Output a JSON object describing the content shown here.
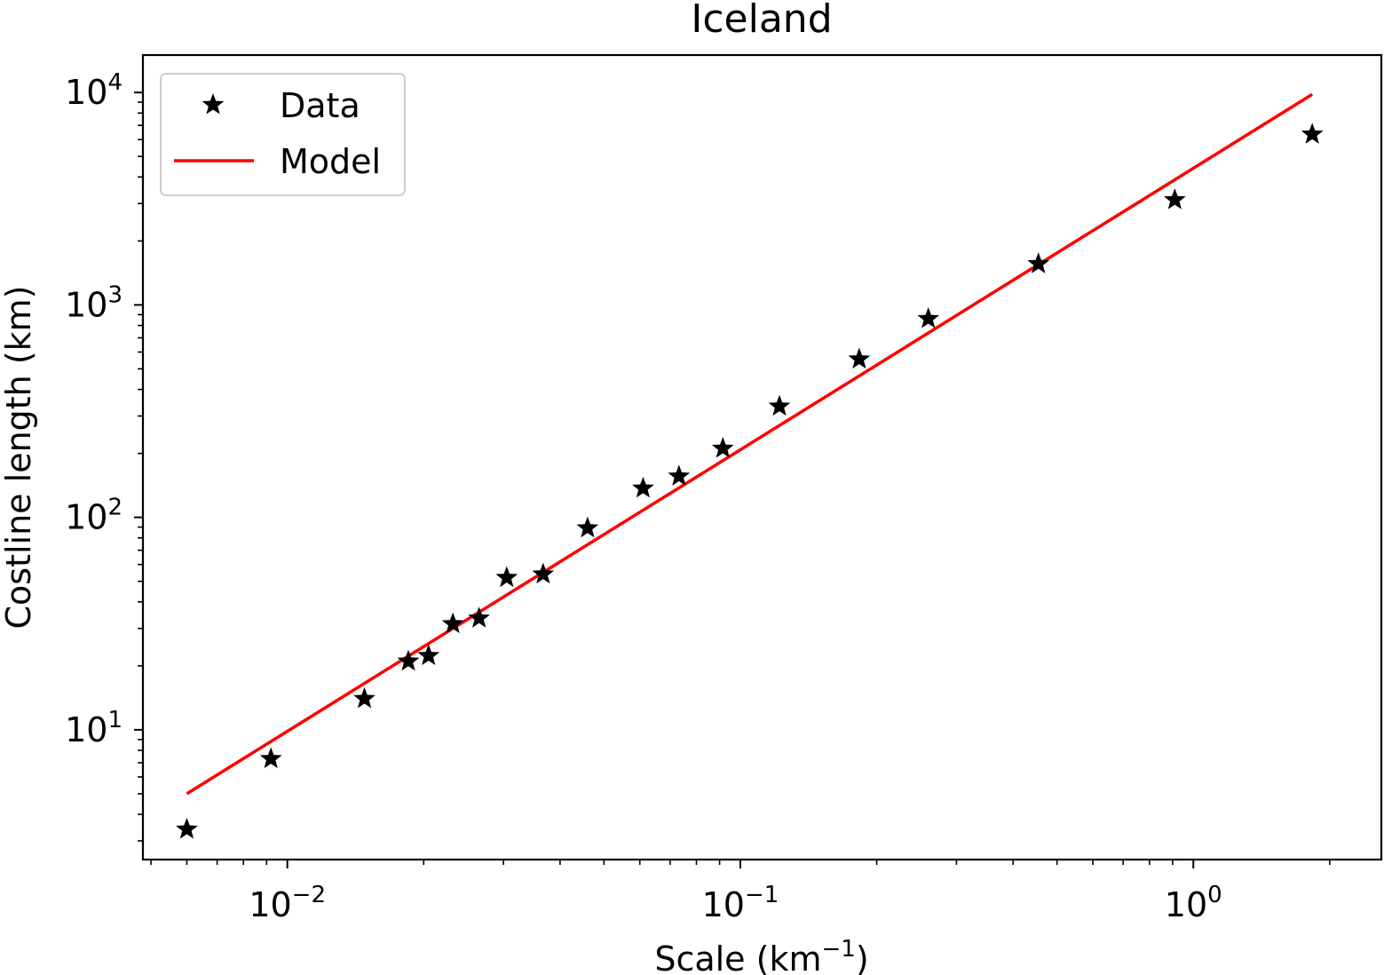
{
  "chart_data": {
    "type": "scatter",
    "title": "Iceland",
    "xlabel": {
      "base": "Scale (km",
      "sup": "−1",
      "tail": ")"
    },
    "ylabel": "Costline length (km)",
    "xscale": "log",
    "yscale": "log",
    "xlim": [
      0.0048,
      2.6
    ],
    "ylim": [
      2.45,
      15000
    ],
    "grid": false,
    "legend_position": "top-left",
    "x_ticks": [
      {
        "value": 0.01,
        "base": "10",
        "exp": "−2"
      },
      {
        "value": 0.1,
        "base": "10",
        "exp": "−1"
      },
      {
        "value": 1,
        "base": "10",
        "exp": "0"
      }
    ],
    "y_ticks": [
      {
        "value": 10,
        "base": "10",
        "exp": "1"
      },
      {
        "value": 100,
        "base": "10",
        "exp": "2"
      },
      {
        "value": 1000,
        "base": "10",
        "exp": "3"
      },
      {
        "value": 10000,
        "base": "10",
        "exp": "4"
      }
    ],
    "series": [
      {
        "name": "Data",
        "kind": "scatter",
        "marker": "star",
        "color": "#000000",
        "points": [
          [
            0.006,
            3.4
          ],
          [
            0.0092,
            7.3
          ],
          [
            0.0148,
            14.0
          ],
          [
            0.0185,
            21.0
          ],
          [
            0.0205,
            22.3
          ],
          [
            0.0232,
            31.5
          ],
          [
            0.0265,
            33.5
          ],
          [
            0.0305,
            52.0
          ],
          [
            0.0367,
            54.0
          ],
          [
            0.046,
            89.0
          ],
          [
            0.061,
            137.0
          ],
          [
            0.0732,
            156.0
          ],
          [
            0.0915,
            211.0
          ],
          [
            0.122,
            333.0
          ],
          [
            0.183,
            555.0
          ],
          [
            0.26,
            860.0
          ],
          [
            0.455,
            1560.0
          ],
          [
            0.91,
            3120.0
          ],
          [
            1.83,
            6350.0
          ]
        ]
      },
      {
        "name": "Model",
        "kind": "line",
        "color": "#ff0000",
        "points": [
          [
            0.006,
            5.0
          ],
          [
            1.83,
            9800.0
          ]
        ]
      }
    ]
  }
}
